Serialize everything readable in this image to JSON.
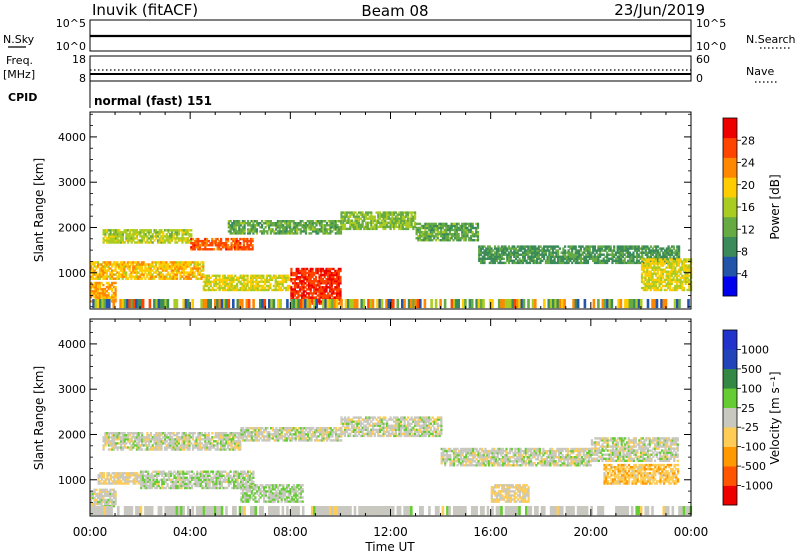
{
  "header": {
    "station": "Inuvik (fitACF)",
    "beam": "Beam 08",
    "date": "23/Jun/2019"
  },
  "top_panels": {
    "nsky_label": "N.Sky",
    "nsearch_label": "N.Search",
    "nsky_ticks": [
      "10^5",
      "10^0"
    ],
    "nsearch_ticks": [
      "10^5",
      "10^0"
    ],
    "freq_label_1": "Freq.",
    "freq_label_2": "[MHz]",
    "freq_ticks": [
      "18",
      "8"
    ],
    "nave_label": "Nave",
    "nave_ticks": [
      "60",
      "0"
    ],
    "cpid_label": "CPID",
    "cpid_text": "normal (fast) 151"
  },
  "colors": {
    "power_scale": [
      "#0000ee",
      "#2255aa",
      "#3a8a5a",
      "#66aa44",
      "#aacc22",
      "#ffcc00",
      "#ff8800",
      "#ff4400",
      "#ee0000"
    ],
    "velocity_scale": [
      "#ee0000",
      "#ff5500",
      "#ff9900",
      "#ffcc55",
      "#c8c8c0",
      "#66cc33",
      "#338844",
      "#2244bb",
      "#2233cc"
    ]
  },
  "chart_data": [
    {
      "type": "heatmap",
      "name": "power",
      "ylabel": "Slant Range [km]",
      "xlabel": "",
      "x_ticks": [
        "00:00",
        "04:00",
        "08:00",
        "12:00",
        "16:00",
        "20:00",
        "00:00"
      ],
      "y_ticks": [
        1000,
        2000,
        3000,
        4000
      ],
      "xlim_hours": [
        0,
        24
      ],
      "ylim": [
        200,
        4550
      ],
      "colorbar_label": "Power [dB]",
      "colorbar_ticks": [
        "4",
        "8",
        "12",
        "16",
        "20",
        "24",
        "28"
      ],
      "colorbar_range": [
        0,
        32
      ],
      "echo_bands": [
        {
          "t": [
            0.5,
            4.0
          ],
          "r": [
            1650,
            1950
          ],
          "v": 16
        },
        {
          "t": [
            4.0,
            6.5
          ],
          "r": [
            1500,
            1750
          ],
          "v": 26
        },
        {
          "t": [
            5.5,
            10.0
          ],
          "r": [
            1850,
            2150
          ],
          "v": 12
        },
        {
          "t": [
            10.0,
            13.0
          ],
          "r": [
            1950,
            2350
          ],
          "v": 14
        },
        {
          "t": [
            13.0,
            15.5
          ],
          "r": [
            1700,
            2100
          ],
          "v": 12
        },
        {
          "t": [
            15.5,
            23.5
          ],
          "r": [
            1200,
            1600
          ],
          "v": 10
        },
        {
          "t": [
            0.0,
            4.5
          ],
          "r": [
            850,
            1250
          ],
          "v": 20
        },
        {
          "t": [
            4.5,
            8.0
          ],
          "r": [
            600,
            950
          ],
          "v": 18
        },
        {
          "t": [
            8.0,
            10.0
          ],
          "r": [
            300,
            1100
          ],
          "v": 28
        },
        {
          "t": [
            0.0,
            1.0
          ],
          "r": [
            350,
            800
          ],
          "v": 22
        },
        {
          "t": [
            22.0,
            24.0
          ],
          "r": [
            600,
            1300
          ],
          "v": 18
        }
      ]
    },
    {
      "type": "heatmap",
      "name": "velocity",
      "ylabel": "Slant Range [km]",
      "xlabel": "Time UT",
      "x_ticks": [
        "00:00",
        "04:00",
        "08:00",
        "12:00",
        "16:00",
        "20:00",
        "00:00"
      ],
      "y_ticks": [
        1000,
        2000,
        3000,
        4000
      ],
      "xlim_hours": [
        0,
        24
      ],
      "ylim": [
        200,
        4550
      ],
      "colorbar_label": "Velocity [m s⁻¹]",
      "colorbar_ticks": [
        "1000",
        "500",
        "100",
        "25",
        "-25",
        "-100",
        "-500",
        "-1000"
      ],
      "colorbar_range": [
        -1200,
        1200
      ],
      "echo_bands": [
        {
          "t": [
            0.5,
            6.0
          ],
          "r": [
            1650,
            2050
          ],
          "v": 0
        },
        {
          "t": [
            6.0,
            10.0
          ],
          "r": [
            1850,
            2150
          ],
          "v": 0
        },
        {
          "t": [
            10.0,
            14.0
          ],
          "r": [
            1950,
            2400
          ],
          "v": 0
        },
        {
          "t": [
            14.0,
            20.0
          ],
          "r": [
            1300,
            1700
          ],
          "v": 0
        },
        {
          "t": [
            20.0,
            23.5
          ],
          "r": [
            1400,
            1900
          ],
          "v": 0
        },
        {
          "t": [
            0.3,
            2.0
          ],
          "r": [
            900,
            1150
          ],
          "v": -110
        },
        {
          "t": [
            2.0,
            6.5
          ],
          "r": [
            800,
            1200
          ],
          "v": 60
        },
        {
          "t": [
            6.0,
            8.5
          ],
          "r": [
            500,
            900
          ],
          "v": 100
        },
        {
          "t": [
            20.5,
            23.5
          ],
          "r": [
            900,
            1350
          ],
          "v": -300
        },
        {
          "t": [
            16.0,
            17.5
          ],
          "r": [
            500,
            900
          ],
          "v": -150
        },
        {
          "t": [
            0.0,
            1.0
          ],
          "r": [
            400,
            800
          ],
          "v": 0
        }
      ]
    }
  ]
}
